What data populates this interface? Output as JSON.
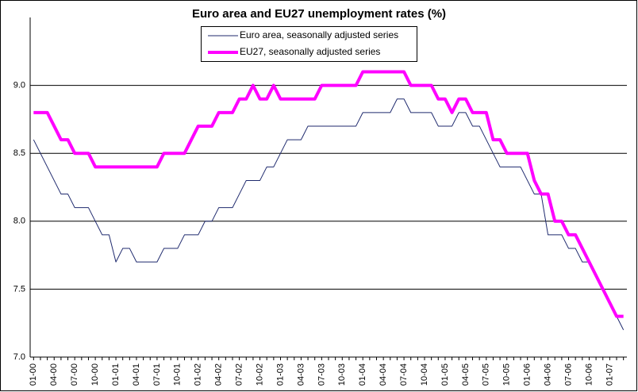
{
  "chart_data": {
    "type": "line",
    "title": "Euro area and EU27 unemployment rates (%)",
    "categories": [
      "01-00",
      null,
      null,
      "04-00",
      null,
      null,
      "07-00",
      null,
      null,
      "10-00",
      null,
      null,
      "01-01",
      null,
      null,
      "04-01",
      null,
      null,
      "07-01",
      null,
      null,
      "10-01",
      null,
      null,
      "01-02",
      null,
      null,
      "04-02",
      null,
      null,
      "07-02",
      null,
      null,
      "10-02",
      null,
      null,
      "01-03",
      null,
      null,
      "04-03",
      null,
      null,
      "07-03",
      null,
      null,
      "10-03",
      null,
      null,
      "01-04",
      null,
      null,
      "04-04",
      null,
      null,
      "07-04",
      null,
      null,
      "10-04",
      null,
      null,
      "01-05",
      null,
      null,
      "04-05",
      null,
      null,
      "07-05",
      null,
      null,
      "10-05",
      null,
      null,
      "01-06",
      null,
      null,
      "04-06",
      null,
      null,
      "07-06",
      null,
      null,
      "10-06",
      null,
      null,
      "01-07",
      null,
      null
    ],
    "series": [
      {
        "name": "Euro area, seasonally adjusted series",
        "color": "#1f2a6e",
        "width": 1,
        "values": [
          8.6,
          8.5,
          8.4,
          8.3,
          8.2,
          8.2,
          8.1,
          8.1,
          8.1,
          8.0,
          7.9,
          7.9,
          7.7,
          7.8,
          7.8,
          7.7,
          7.7,
          7.7,
          7.7,
          7.8,
          7.8,
          7.8,
          7.9,
          7.9,
          7.9,
          8.0,
          8.0,
          8.1,
          8.1,
          8.1,
          8.2,
          8.3,
          8.3,
          8.3,
          8.4,
          8.4,
          8.5,
          8.6,
          8.6,
          8.6,
          8.7,
          8.7,
          8.7,
          8.7,
          8.7,
          8.7,
          8.7,
          8.7,
          8.8,
          8.8,
          8.8,
          8.8,
          8.8,
          8.9,
          8.9,
          8.8,
          8.8,
          8.8,
          8.8,
          8.7,
          8.7,
          8.7,
          8.8,
          8.8,
          8.7,
          8.7,
          8.6,
          8.5,
          8.4,
          8.4,
          8.4,
          8.4,
          8.3,
          8.2,
          8.2,
          7.9,
          7.9,
          7.9,
          7.8,
          7.8,
          7.7,
          7.7,
          7.6,
          7.5,
          7.4,
          7.3,
          7.2
        ]
      },
      {
        "name": "EU27, seasonally adjusted series",
        "color": "#ff00ff",
        "width": 4,
        "values": [
          8.8,
          8.8,
          8.8,
          8.7,
          8.6,
          8.6,
          8.5,
          8.5,
          8.5,
          8.4,
          8.4,
          8.4,
          8.4,
          8.4,
          8.4,
          8.4,
          8.4,
          8.4,
          8.4,
          8.5,
          8.5,
          8.5,
          8.5,
          8.6,
          8.7,
          8.7,
          8.7,
          8.8,
          8.8,
          8.8,
          8.9,
          8.9,
          9.0,
          8.9,
          8.9,
          9.0,
          8.9,
          8.9,
          8.9,
          8.9,
          8.9,
          8.9,
          9.0,
          9.0,
          9.0,
          9.0,
          9.0,
          9.0,
          9.1,
          9.1,
          9.1,
          9.1,
          9.1,
          9.1,
          9.1,
          9.0,
          9.0,
          9.0,
          9.0,
          8.9,
          8.9,
          8.8,
          8.9,
          8.9,
          8.8,
          8.8,
          8.8,
          8.6,
          8.6,
          8.5,
          8.5,
          8.5,
          8.5,
          8.3,
          8.2,
          8.2,
          8.0,
          8.0,
          7.9,
          7.9,
          7.8,
          7.7,
          7.6,
          7.5,
          7.4,
          7.3,
          7.3
        ]
      }
    ],
    "ylim": [
      7,
      9.5
    ],
    "yticks": [
      {
        "value": 7,
        "label": "7.0"
      },
      7.5,
      {
        "value": 8,
        "label": "8.0"
      },
      8.5,
      {
        "value": 9,
        "label": "9.0"
      }
    ],
    "grid": true
  }
}
